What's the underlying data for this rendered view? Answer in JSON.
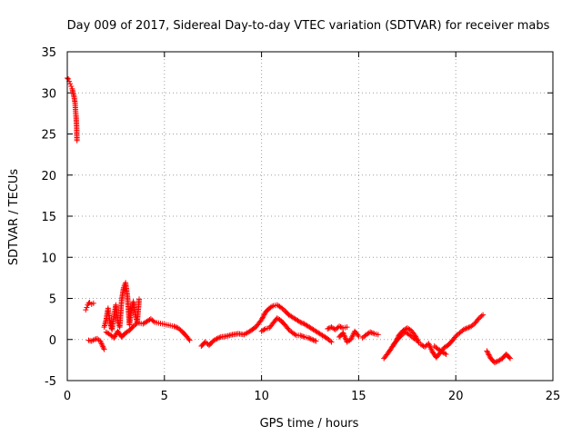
{
  "chart_data": {
    "type": "scatter",
    "title": "Day 009 of 2017, Sidereal Day-to-day VTEC variation (SDTVAR) for receiver mabs",
    "xlabel": "GPS time / hours",
    "ylabel": "SDTVAR / TECUs",
    "xlim": [
      0,
      25
    ],
    "ylim": [
      -5,
      35
    ],
    "xticks": [
      0,
      5,
      10,
      15,
      20,
      25
    ],
    "yticks": [
      -5,
      0,
      5,
      10,
      15,
      20,
      25,
      30,
      35
    ],
    "grid": true,
    "marker": "+",
    "color": "#ff0000",
    "series": [
      {
        "name": "SDTVAR",
        "segments": [
          [
            [
              0.0,
              31.8
            ],
            [
              0.05,
              31.7
            ],
            [
              0.1,
              31.4
            ],
            [
              0.15,
              31.1
            ],
            [
              0.2,
              30.8
            ],
            [
              0.25,
              30.5
            ],
            [
              0.3,
              30.0
            ],
            [
              0.35,
              29.5
            ],
            [
              0.4,
              28.8
            ],
            [
              0.42,
              28.0
            ],
            [
              0.45,
              27.2
            ],
            [
              0.48,
              26.0
            ],
            [
              0.5,
              24.2
            ]
          ],
          [
            [
              0.95,
              3.6
            ],
            [
              1.0,
              3.9
            ],
            [
              1.05,
              4.2
            ],
            [
              1.1,
              4.4
            ],
            [
              1.15,
              4.5
            ],
            [
              1.25,
              4.3
            ],
            [
              1.35,
              4.4
            ]
          ],
          [
            [
              1.1,
              -0.1
            ],
            [
              1.25,
              -0.2
            ],
            [
              1.4,
              0.0
            ],
            [
              1.55,
              0.1
            ],
            [
              1.7,
              -0.2
            ],
            [
              1.8,
              -0.7
            ],
            [
              1.9,
              -1.2
            ]
          ],
          [
            [
              1.9,
              1.5
            ],
            [
              2.0,
              2.4
            ],
            [
              2.1,
              3.8
            ],
            [
              2.2,
              2.0
            ],
            [
              2.3,
              1.2
            ],
            [
              2.4,
              2.8
            ],
            [
              2.5,
              4.2
            ],
            [
              2.6,
              2.2
            ],
            [
              2.7,
              1.5
            ],
            [
              2.8,
              4.8
            ],
            [
              2.9,
              6.3
            ],
            [
              3.0,
              6.9
            ],
            [
              3.1,
              5.2
            ],
            [
              3.2,
              1.8
            ],
            [
              3.3,
              3.6
            ],
            [
              3.4,
              4.6
            ],
            [
              3.5,
              3.0
            ],
            [
              3.6,
              2.1
            ],
            [
              3.7,
              4.9
            ]
          ],
          [
            [
              2.0,
              0.9
            ],
            [
              2.2,
              0.6
            ],
            [
              2.4,
              0.2
            ],
            [
              2.6,
              1.0
            ],
            [
              2.8,
              0.3
            ],
            [
              3.0,
              0.8
            ],
            [
              3.2,
              1.1
            ],
            [
              3.4,
              1.6
            ],
            [
              3.6,
              2.0
            ]
          ],
          [
            [
              3.7,
              2.0
            ],
            [
              3.9,
              1.9
            ],
            [
              4.1,
              2.2
            ],
            [
              4.3,
              2.5
            ],
            [
              4.5,
              2.1
            ],
            [
              4.7,
              2.0
            ],
            [
              4.9,
              1.9
            ],
            [
              5.1,
              1.8
            ],
            [
              5.3,
              1.7
            ],
            [
              5.5,
              1.6
            ],
            [
              5.7,
              1.4
            ],
            [
              5.9,
              1.0
            ],
            [
              6.1,
              0.5
            ],
            [
              6.3,
              -0.1
            ]
          ],
          [
            [
              6.9,
              -0.8
            ],
            [
              7.1,
              -0.3
            ],
            [
              7.3,
              -0.7
            ],
            [
              7.5,
              -0.2
            ],
            [
              7.7,
              0.1
            ],
            [
              7.9,
              0.3
            ],
            [
              8.2,
              0.4
            ],
            [
              8.5,
              0.6
            ],
            [
              8.8,
              0.7
            ],
            [
              9.1,
              0.6
            ],
            [
              9.4,
              1.0
            ],
            [
              9.7,
              1.5
            ],
            [
              10.0,
              2.4
            ],
            [
              10.2,
              3.3
            ],
            [
              10.4,
              3.8
            ],
            [
              10.6,
              4.1
            ],
            [
              10.8,
              4.2
            ],
            [
              11.0,
              3.9
            ],
            [
              11.2,
              3.5
            ],
            [
              11.4,
              3.0
            ],
            [
              11.6,
              2.7
            ],
            [
              11.8,
              2.4
            ],
            [
              12.0,
              2.1
            ],
            [
              12.2,
              1.9
            ],
            [
              12.4,
              1.6
            ],
            [
              12.6,
              1.3
            ],
            [
              12.8,
              1.0
            ],
            [
              13.0,
              0.7
            ],
            [
              13.2,
              0.4
            ],
            [
              13.4,
              0.1
            ],
            [
              13.6,
              -0.3
            ]
          ],
          [
            [
              10.0,
              1.0
            ],
            [
              10.2,
              1.3
            ],
            [
              10.4,
              1.4
            ],
            [
              10.6,
              2.0
            ],
            [
              10.8,
              2.6
            ],
            [
              11.0,
              2.3
            ],
            [
              11.2,
              1.8
            ],
            [
              11.4,
              1.2
            ],
            [
              11.6,
              0.8
            ],
            [
              11.8,
              0.5
            ],
            [
              12.0,
              0.5
            ],
            [
              12.2,
              0.3
            ],
            [
              12.4,
              0.2
            ],
            [
              12.6,
              0.0
            ],
            [
              12.8,
              -0.2
            ]
          ],
          [
            [
              13.4,
              1.3
            ],
            [
              13.6,
              1.5
            ],
            [
              13.8,
              1.2
            ],
            [
              14.0,
              1.6
            ],
            [
              14.2,
              1.4
            ],
            [
              14.4,
              1.5
            ]
          ],
          [
            [
              14.0,
              0.3
            ],
            [
              14.2,
              0.8
            ],
            [
              14.4,
              -0.3
            ],
            [
              14.6,
              0.0
            ],
            [
              14.8,
              1.0
            ],
            [
              15.0,
              0.4
            ]
          ],
          [
            [
              15.2,
              0.2
            ],
            [
              15.4,
              0.6
            ],
            [
              15.6,
              0.9
            ],
            [
              15.8,
              0.7
            ],
            [
              16.0,
              0.6
            ]
          ],
          [
            [
              16.3,
              -2.3
            ],
            [
              16.5,
              -1.7
            ],
            [
              16.7,
              -1.0
            ],
            [
              16.9,
              -0.3
            ],
            [
              17.1,
              0.6
            ],
            [
              17.3,
              1.1
            ],
            [
              17.5,
              1.4
            ],
            [
              17.7,
              1.1
            ],
            [
              17.9,
              0.5
            ],
            [
              18.1,
              -0.4
            ]
          ],
          [
            [
              16.8,
              -0.6
            ],
            [
              17.0,
              0.0
            ],
            [
              17.2,
              0.5
            ],
            [
              17.4,
              0.9
            ],
            [
              17.6,
              0.6
            ],
            [
              17.8,
              0.2
            ],
            [
              18.0,
              -0.1
            ]
          ],
          [
            [
              18.2,
              -0.6
            ],
            [
              18.4,
              -0.9
            ],
            [
              18.6,
              -0.5
            ],
            [
              18.8,
              -1.5
            ],
            [
              19.0,
              -2.2
            ],
            [
              19.2,
              -1.6
            ],
            [
              19.4,
              -1.0
            ],
            [
              19.6,
              -0.7
            ],
            [
              19.8,
              -0.2
            ],
            [
              20.0,
              0.4
            ],
            [
              20.2,
              0.8
            ],
            [
              20.4,
              1.2
            ],
            [
              20.6,
              1.4
            ],
            [
              20.8,
              1.6
            ],
            [
              21.0,
              2.0
            ],
            [
              21.2,
              2.6
            ],
            [
              21.4,
              3.0
            ]
          ],
          [
            [
              18.9,
              -0.8
            ],
            [
              19.1,
              -1.2
            ],
            [
              19.3,
              -1.5
            ],
            [
              19.5,
              -1.8
            ]
          ],
          [
            [
              21.6,
              -1.4
            ],
            [
              21.8,
              -2.3
            ],
            [
              22.0,
              -2.8
            ],
            [
              22.2,
              -2.6
            ],
            [
              22.4,
              -2.3
            ],
            [
              22.6,
              -1.8
            ],
            [
              22.8,
              -2.3
            ]
          ]
        ]
      }
    ]
  }
}
